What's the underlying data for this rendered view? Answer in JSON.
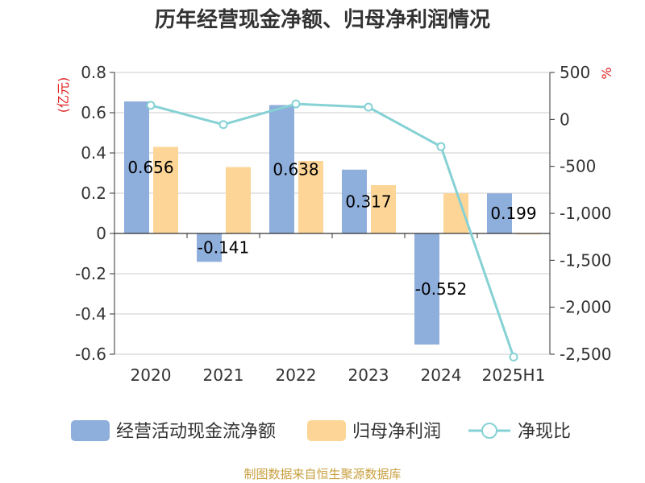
{
  "chart_data": {
    "type": "bar",
    "title": "历年经营现金净额、归母净利润情况",
    "categories": [
      "2020",
      "2021",
      "2022",
      "2023",
      "2024",
      "2025H1"
    ],
    "series": [
      {
        "name": "经营活动现金流净额",
        "kind": "bar",
        "axis": "left",
        "color": "#8eaedb",
        "values": [
          0.656,
          -0.141,
          0.638,
          0.317,
          -0.552,
          0.199
        ],
        "labels": [
          "0.656",
          "-0.141",
          "0.638",
          "0.317",
          "-0.552",
          "0.199"
        ]
      },
      {
        "name": "归母净利润",
        "kind": "bar",
        "axis": "left",
        "color": "#fdd596",
        "values": [
          0.43,
          0.33,
          0.36,
          0.24,
          0.2,
          -0.005
        ]
      },
      {
        "name": "净现比",
        "kind": "line",
        "axis": "right",
        "color": "#86d1d4",
        "values": [
          150,
          -55,
          165,
          130,
          -290,
          -2530
        ]
      }
    ],
    "left_axis": {
      "unit": "(亿元)",
      "ylim": [
        -0.6,
        0.8
      ],
      "ticks": [
        0.8,
        0.6,
        0.4,
        0.2,
        0,
        -0.2,
        -0.4,
        -0.6
      ],
      "tick_labels": [
        "0.8",
        "0.6",
        "0.4",
        "0.2",
        "0",
        "-0.2",
        "-0.4",
        "-0.6"
      ]
    },
    "right_axis": {
      "unit": "%",
      "ylim": [
        -2500,
        500
      ],
      "ticks": [
        500,
        0,
        -500,
        -1000,
        -1500,
        -2000,
        -2500
      ],
      "tick_labels": [
        "500",
        "0",
        "-500",
        "-1,000",
        "-1,500",
        "-2,000",
        "-2,500"
      ]
    },
    "grid": true,
    "legend_position": "bottom"
  },
  "source": "制图数据来自恒生聚源数据库"
}
